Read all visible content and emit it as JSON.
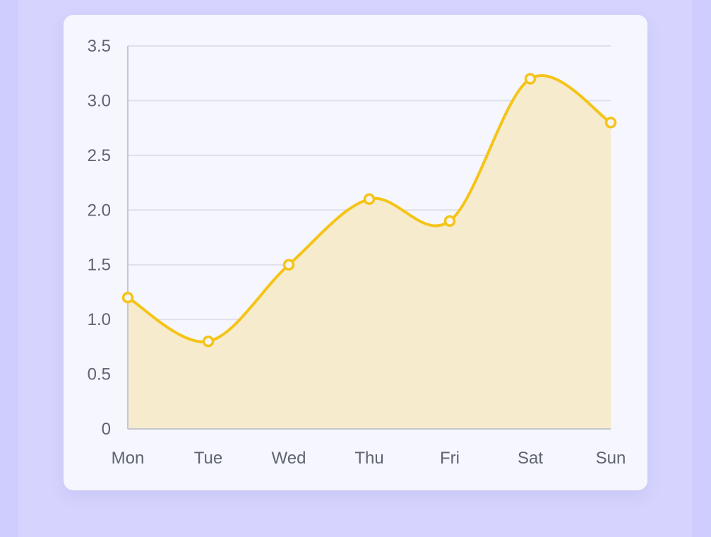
{
  "chart_data": {
    "type": "area",
    "categories": [
      "Mon",
      "Tue",
      "Wed",
      "Thu",
      "Fri",
      "Sat",
      "Sun"
    ],
    "series": [
      {
        "values": [
          1.2,
          0.8,
          1.5,
          2.1,
          1.9,
          3.2,
          2.8
        ]
      }
    ],
    "y_ticks": [
      "0",
      "0.5",
      "1.0",
      "1.5",
      "2.0",
      "2.5",
      "3.0",
      "3.5"
    ],
    "ylim": [
      0,
      3.5
    ],
    "grid": true,
    "legend": "none",
    "colors": {
      "line": "#f5c418",
      "fill": "#f6ebcd",
      "grid": "#dfdfe9",
      "axis": "#c6c7cf",
      "text": "#5f6470",
      "point_fill": "#f7f4ef"
    }
  }
}
